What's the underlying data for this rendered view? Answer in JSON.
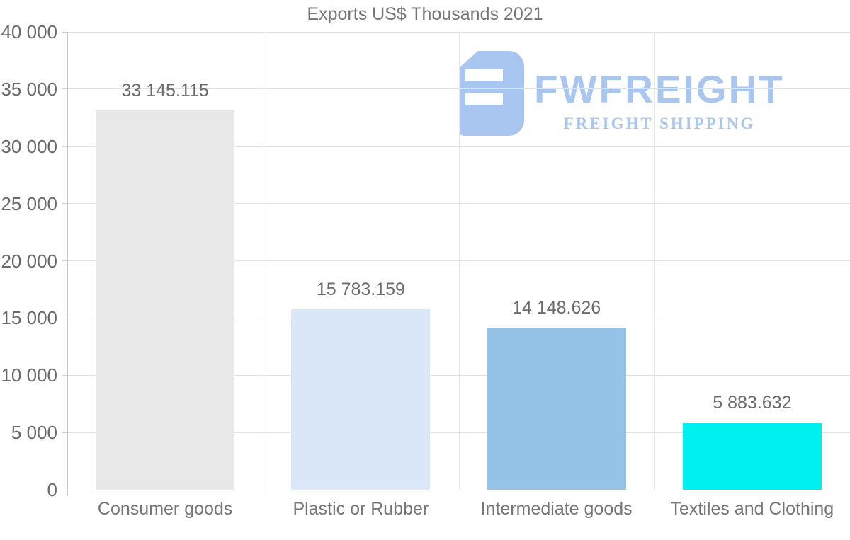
{
  "title": "Exports US$ Thousands 2021",
  "watermark": {
    "brand": "FWFREIGHT",
    "tagline": "FREIGHT SHIPPING",
    "color": "#a9c6f1"
  },
  "chart_data": {
    "type": "bar",
    "title": "Exports US$ Thousands 2021",
    "xlabel": "",
    "ylabel": "",
    "categories": [
      "Consumer goods",
      "Plastic or Rubber",
      "Intermediate goods",
      "Textiles and Clothing"
    ],
    "values": [
      33145.115,
      15783.159,
      14148.626,
      5883.632
    ],
    "value_labels": [
      "33 145.115",
      "15 783.159",
      "14 148.626",
      "5 883.632"
    ],
    "bar_colors": [
      "#e8e8e8",
      "#d9e7f8",
      "#95c2e7",
      "#00f0f0"
    ],
    "ylim": [
      0,
      40000
    ],
    "ytick_step": 5000,
    "ytick_labels": [
      "0",
      "5 000",
      "10 000",
      "15 000",
      "20 000",
      "25 000",
      "30 000",
      "35 000",
      "40 000"
    ],
    "grid": true,
    "legend": "none",
    "grid_color": "#e3e3e3",
    "text_color": "#757575"
  }
}
